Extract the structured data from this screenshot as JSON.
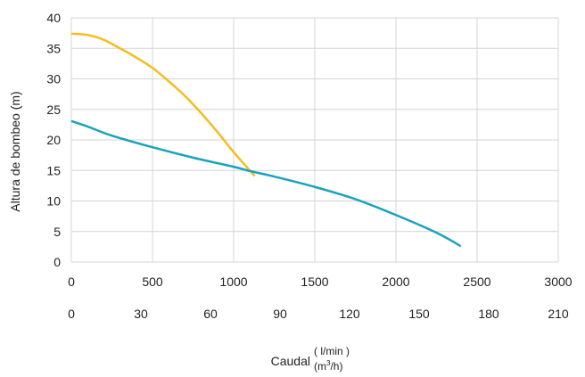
{
  "chart_data": {
    "type": "line",
    "ylabel": "Altura de bombeo (m)",
    "xlabel": {
      "main": "Caudal",
      "unit_top": "( l/min )",
      "unit_bottom_pre": "(m",
      "unit_bottom_sup": "3",
      "unit_bottom_post": "/h)"
    },
    "x_primary": {
      "label": "l/min",
      "lim": [
        0,
        3000
      ],
      "ticks": [
        "0",
        "500",
        "1000",
        "1500",
        "2000",
        "2500",
        "3000"
      ]
    },
    "x_secondary": {
      "label": "m3/h",
      "lim": [
        0,
        210
      ],
      "ticks": [
        "0",
        "30",
        "60",
        "90",
        "120",
        "150",
        "180",
        "210"
      ]
    },
    "ylim": [
      0,
      40
    ],
    "yticks": [
      "0",
      "5",
      "10",
      "15",
      "20",
      "25",
      "30",
      "35",
      "40"
    ],
    "grid": true,
    "series": [
      {
        "color": "#f5bd1f",
        "x": [
          0,
          100,
          200,
          300,
          400,
          500,
          600,
          700,
          800,
          900,
          1000,
          1100,
          1130
        ],
        "y": [
          37.4,
          37.2,
          36.4,
          35.0,
          33.5,
          31.8,
          29.6,
          27.2,
          24.4,
          21.3,
          18.0,
          15.0,
          14.1
        ]
      },
      {
        "color": "#1aa3be",
        "x": [
          0,
          100,
          250,
          500,
          750,
          1000,
          1100,
          1250,
          1500,
          1750,
          2000,
          2250,
          2400
        ],
        "y": [
          23.1,
          22.2,
          20.7,
          18.8,
          17.1,
          15.6,
          14.9,
          14.0,
          12.3,
          10.3,
          7.7,
          4.8,
          2.6
        ]
      }
    ]
  }
}
